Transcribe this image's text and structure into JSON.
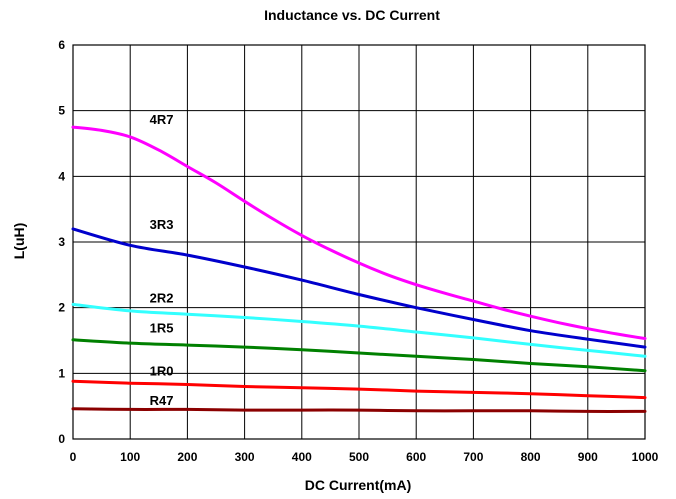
{
  "chart_data": {
    "type": "line",
    "title": "Inductance vs. DC Current",
    "xlabel": "DC Current(mA)",
    "ylabel": "L(uH)",
    "xlim": [
      0,
      1000
    ],
    "ylim": [
      0,
      6
    ],
    "xticks": [
      "0",
      "100",
      "200",
      "300",
      "400",
      "500",
      "600",
      "700",
      "800",
      "900",
      "1000"
    ],
    "yticks": [
      "0",
      "1",
      "2",
      "3",
      "4",
      "5",
      "6"
    ],
    "grid": true,
    "legend": "labels-on-curves",
    "series": [
      {
        "name": "4R7",
        "color": "#ff00ff",
        "label_at": [
          120,
          4.8
        ],
        "x": [
          0,
          50,
          100,
          150,
          200,
          250,
          300,
          350,
          400,
          450,
          500,
          550,
          600,
          650,
          700,
          750,
          800,
          850,
          900,
          950,
          1000
        ],
        "values": [
          4.75,
          4.7,
          4.6,
          4.4,
          4.15,
          3.9,
          3.62,
          3.35,
          3.1,
          2.88,
          2.68,
          2.5,
          2.35,
          2.22,
          2.1,
          1.98,
          1.87,
          1.77,
          1.68,
          1.6,
          1.53
        ]
      },
      {
        "name": "3R3",
        "color": "#0000cc",
        "label_at": [
          120,
          3.2
        ],
        "x": [
          0,
          100,
          200,
          300,
          400,
          500,
          600,
          700,
          800,
          900,
          1000
        ],
        "values": [
          3.2,
          2.95,
          2.8,
          2.62,
          2.42,
          2.2,
          2.0,
          1.82,
          1.65,
          1.52,
          1.4
        ]
      },
      {
        "name": "2R2",
        "color": "#33ffff",
        "label_at": [
          120,
          2.08
        ],
        "x": [
          0,
          100,
          200,
          300,
          400,
          500,
          600,
          700,
          800,
          900,
          1000
        ],
        "values": [
          2.05,
          1.95,
          1.9,
          1.85,
          1.79,
          1.72,
          1.63,
          1.54,
          1.44,
          1.35,
          1.26
        ]
      },
      {
        "name": "1R5",
        "color": "#008000",
        "label_at": [
          120,
          1.62
        ],
        "x": [
          0,
          100,
          200,
          300,
          400,
          500,
          600,
          700,
          800,
          900,
          1000
        ],
        "values": [
          1.51,
          1.46,
          1.43,
          1.4,
          1.36,
          1.31,
          1.26,
          1.21,
          1.15,
          1.1,
          1.04
        ]
      },
      {
        "name": "1R0",
        "color": "#ff0000",
        "label_at": [
          120,
          0.97
        ],
        "x": [
          0,
          100,
          200,
          300,
          400,
          500,
          600,
          700,
          800,
          900,
          1000
        ],
        "values": [
          0.88,
          0.85,
          0.83,
          0.8,
          0.78,
          0.76,
          0.73,
          0.71,
          0.69,
          0.66,
          0.63
        ]
      },
      {
        "name": "R47",
        "color": "#8b0000",
        "label_at": [
          120,
          0.52
        ],
        "x": [
          0,
          100,
          200,
          300,
          400,
          500,
          600,
          700,
          800,
          900,
          1000
        ],
        "values": [
          0.46,
          0.45,
          0.45,
          0.44,
          0.44,
          0.44,
          0.43,
          0.43,
          0.43,
          0.42,
          0.42
        ]
      }
    ]
  }
}
